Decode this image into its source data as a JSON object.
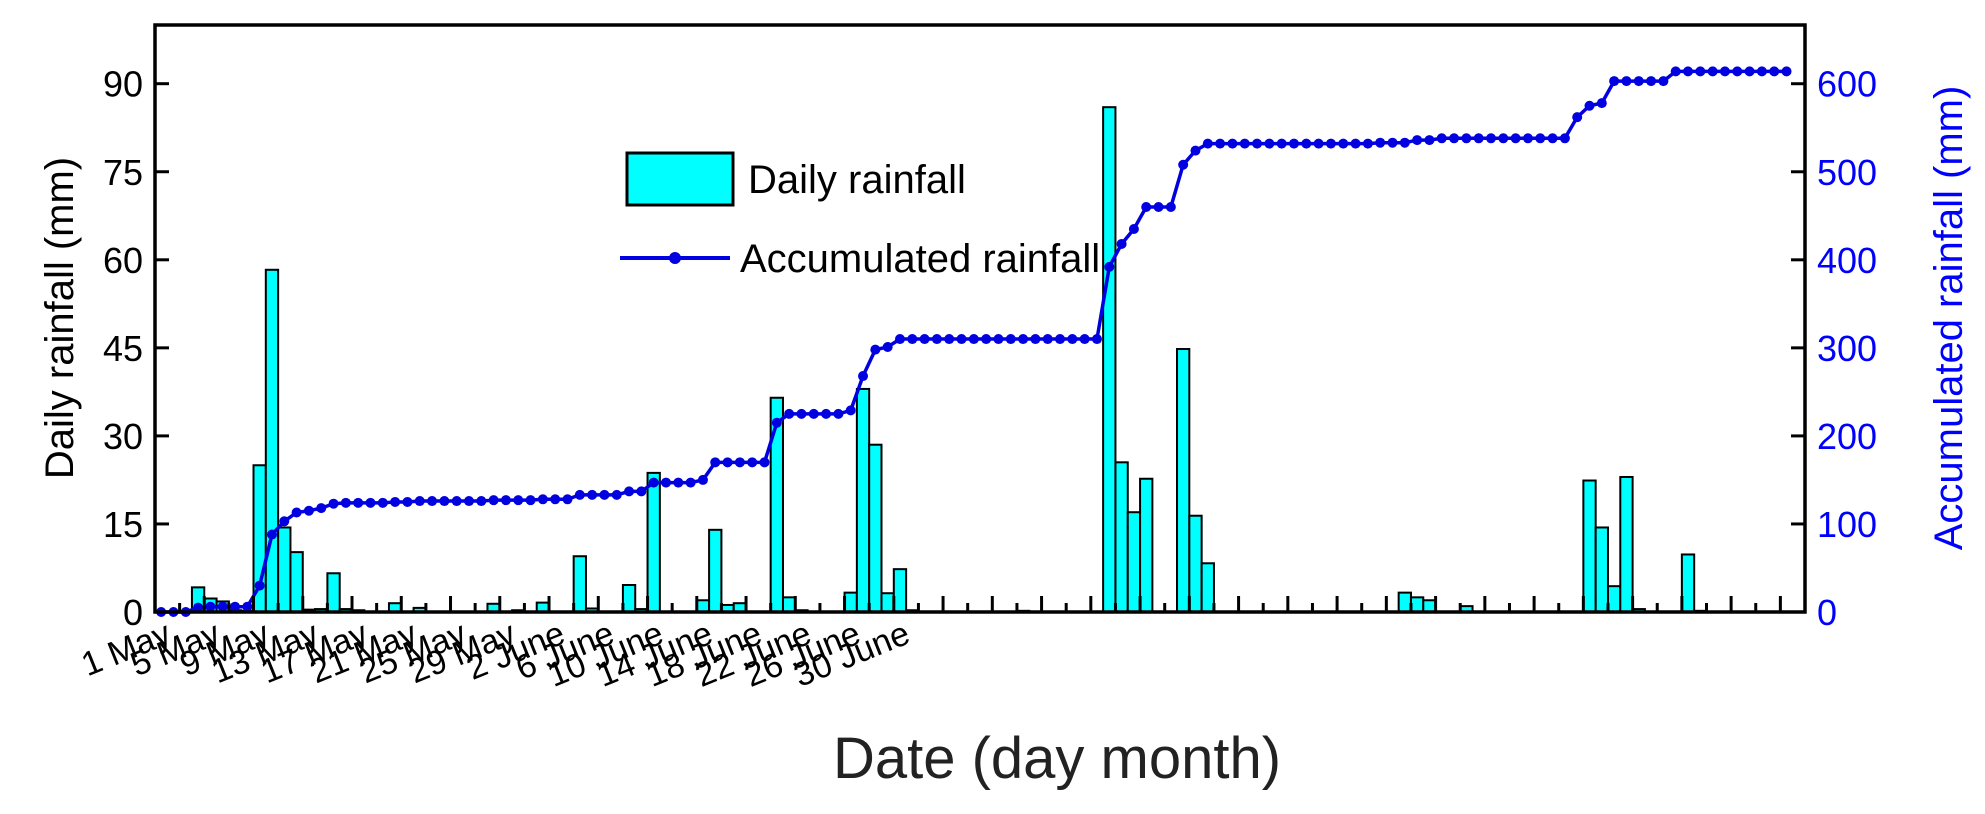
{
  "chart_data": {
    "type": "bar+line",
    "title": "",
    "xlabel": "Date (day month)",
    "ylabel_left": "Daily rainfall (mm)",
    "ylabel_right": "Accumulated rainfall (mm)",
    "ylim_left": [
      0,
      100
    ],
    "ylim_right": [
      0,
      666.7
    ],
    "yticks_left": [
      0,
      15,
      30,
      45,
      60,
      75,
      90
    ],
    "yticks_right": [
      0,
      100,
      200,
      300,
      400,
      500,
      600
    ],
    "xtick_labels": [
      "1 May",
      "5 May",
      "9 May",
      "13 May",
      "17 May",
      "21 May",
      "25 May",
      "29 May",
      "2 June",
      "6 June",
      "10 June",
      "14 June",
      "18 June",
      "22 June",
      "26 June",
      "30 June"
    ],
    "legend": {
      "position": "upper-center",
      "bar_label": "Daily rainfall",
      "line_label": "Accumulated rainfall"
    },
    "colors": {
      "bar": "#00ffff",
      "line": "#0000e0",
      "right_axis": "#0000ff"
    },
    "series": [
      {
        "name": "Daily rainfall",
        "type": "bar",
        "values": [
          0,
          0,
          0,
          4.2,
          2.3,
          1.8,
          0.3,
          0.2,
          25,
          58.3,
          14.4,
          10.2,
          0.4,
          0.5,
          6.6,
          0.5,
          0.3,
          0,
          0,
          1.5,
          0,
          0.7,
          0,
          0,
          0,
          0,
          0,
          1.4,
          0,
          0.3,
          0,
          1.6,
          0,
          0,
          9.5,
          0.6,
          0,
          0,
          4.6,
          0.5,
          23.7,
          0,
          0,
          0,
          2,
          14,
          1.2,
          1.5,
          0,
          0,
          36.5,
          2.5,
          0.3,
          0,
          0,
          0,
          3.3,
          38,
          28.5,
          3.2,
          7.3,
          0.3,
          0,
          0,
          0,
          0,
          0,
          0,
          0,
          0,
          0.2,
          0,
          0,
          0,
          0,
          0,
          0,
          86,
          25.5,
          17,
          22.7,
          0,
          0,
          44.8,
          16.4,
          8.3,
          0,
          0,
          0,
          0,
          0,
          0,
          0,
          0,
          0,
          0,
          0,
          0,
          0,
          0,
          0,
          3.3,
          2.5,
          2,
          0,
          0,
          1,
          0,
          0,
          0,
          0,
          0,
          0,
          0,
          0,
          0,
          22.4,
          14.4,
          4.4,
          23,
          0.5,
          0,
          0,
          0,
          9.8,
          0.2,
          0,
          0,
          0,
          0,
          0,
          0,
          0,
          0
        ]
      },
      {
        "name": "Accumulated rainfall",
        "type": "line",
        "values": [
          0,
          0,
          0,
          5,
          6,
          6,
          6,
          6,
          30,
          88,
          103,
          113,
          115,
          118,
          123,
          124,
          124,
          124,
          124,
          125,
          125,
          126,
          126,
          126,
          126,
          126,
          126,
          127,
          127,
          127,
          127,
          128,
          128,
          128,
          133,
          133,
          133,
          133,
          137,
          137,
          147,
          147,
          147,
          147,
          150,
          170,
          170,
          170,
          170,
          170,
          215,
          225,
          225,
          225,
          225,
          225,
          229,
          268,
          298,
          301,
          310,
          310,
          310,
          310,
          310,
          310,
          310,
          310,
          310,
          310,
          310,
          310,
          310,
          310,
          310,
          310,
          310,
          392,
          418,
          435,
          460,
          460,
          460,
          508,
          524,
          532,
          532,
          532,
          532,
          532,
          532,
          532,
          532,
          532,
          532,
          532,
          532,
          532,
          532,
          533,
          533,
          533,
          536,
          536,
          538,
          538,
          538,
          538,
          538,
          538,
          538,
          538,
          538,
          538,
          538,
          562,
          575,
          578,
          603,
          603,
          603,
          603,
          603,
          614,
          614,
          614,
          614,
          614,
          614,
          614,
          614,
          614,
          614
        ]
      }
    ]
  }
}
